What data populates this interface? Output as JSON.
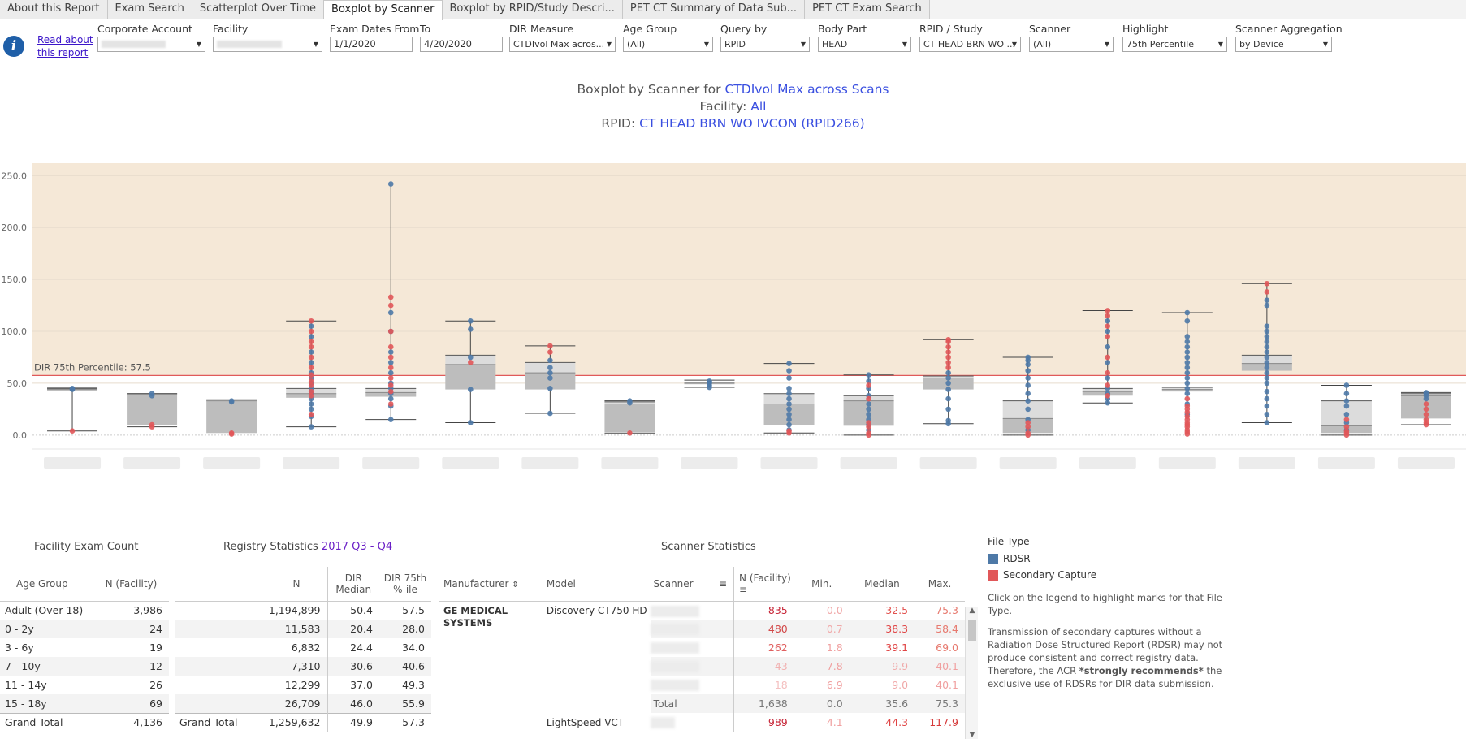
{
  "tabs": [
    {
      "label": "About this Report",
      "active": false
    },
    {
      "label": "Exam Search",
      "active": false
    },
    {
      "label": "Scatterplot Over Time",
      "active": false
    },
    {
      "label": "Boxplot by Scanner",
      "active": true
    },
    {
      "label": "Boxplot by RPID/Study Descri...",
      "active": false
    },
    {
      "label": "PET CT Summary of Data Sub...",
      "active": false
    },
    {
      "label": "PET CT Exam Search",
      "active": false
    }
  ],
  "header": {
    "read_link": "Read about this report",
    "filters": {
      "corporate_account": {
        "label": "Corporate Account",
        "value": ""
      },
      "facility": {
        "label": "Facility",
        "value": ""
      },
      "exam_dates_from": {
        "label": "Exam Dates From",
        "value": "1/1/2020"
      },
      "to": {
        "label": "To",
        "value": "4/20/2020"
      },
      "dir_measure": {
        "label": "DIR Measure",
        "value": "CTDIvol Max acros..."
      },
      "age_group": {
        "label": "Age Group",
        "value": "(All)"
      },
      "query_by": {
        "label": "Query by",
        "value": "RPID"
      },
      "body_part": {
        "label": "Body Part",
        "value": "HEAD"
      },
      "rpid_study": {
        "label": "RPID / Study",
        "value": "CT HEAD BRN WO ..."
      },
      "scanner": {
        "label": "Scanner",
        "value": "(All)"
      },
      "highlight": {
        "label": "Highlight",
        "value": "75th Percentile"
      },
      "scanner_aggregation": {
        "label": "Scanner Aggregation",
        "value": "by Device"
      }
    }
  },
  "title": {
    "line1_prefix": "Boxplot by Scanner for ",
    "line1_value": "CTDIvol Max across Scans",
    "line2_prefix": "Facility: ",
    "line2_value": "All",
    "line3_prefix": "RPID: ",
    "line3_value": "CT HEAD BRN WO IVCON (RPID266)"
  },
  "colors": {
    "rdsr": "#4e79a7",
    "secondary_capture": "#e15759",
    "highlight_band": "#f5e8d7",
    "reference_line": "#e05a5a",
    "link": "#3b15c9"
  },
  "chart_data": {
    "type": "boxplot",
    "y_ticks": [
      "250.0",
      "200.0",
      "150.0",
      "100.0",
      "50.0",
      "0.0"
    ],
    "ylim": [
      -15,
      262
    ],
    "highlight_above": 57.5,
    "reference_line": {
      "value": 57.5,
      "label": "DIR 75th Percentile: 57.5"
    },
    "scanners": [
      {
        "q1": 43,
        "median": 44,
        "q3": 45,
        "min": 4,
        "max": 46,
        "rdsr": [
          44,
          45
        ],
        "sc": [
          4
        ]
      },
      {
        "q1": 10,
        "median": 39,
        "q3": 40,
        "min": 8,
        "max": 40,
        "rdsr": [
          38,
          40
        ],
        "sc": [
          8,
          10
        ]
      },
      {
        "q1": 2,
        "median": 33,
        "q3": 34,
        "min": 1,
        "max": 34,
        "rdsr": [
          32,
          33
        ],
        "sc": [
          1,
          2
        ]
      },
      {
        "q1": 36,
        "median": 40,
        "q3": 45,
        "min": 8,
        "max": 110,
        "rdsr": [
          8,
          18,
          25,
          30,
          35,
          40,
          45,
          50,
          55,
          60,
          70,
          80,
          95,
          105
        ],
        "sc": [
          20,
          38,
          42,
          48,
          52,
          58,
          65,
          75,
          85,
          90,
          100,
          110
        ]
      },
      {
        "q1": 37,
        "median": 41,
        "q3": 45,
        "min": 15,
        "max": 242,
        "rdsr": [
          15,
          28,
          35,
          40,
          45,
          50,
          60,
          70,
          80,
          100,
          118,
          242
        ],
        "sc": [
          30,
          42,
          48,
          55,
          65,
          75,
          85,
          100,
          125,
          133
        ]
      },
      {
        "q1": 44,
        "median": 68,
        "q3": 77,
        "min": 12,
        "max": 110,
        "rdsr": [
          12,
          44,
          75,
          102,
          110
        ],
        "sc": [
          70
        ]
      },
      {
        "q1": 44,
        "median": 60,
        "q3": 70,
        "min": 21,
        "max": 86,
        "rdsr": [
          21,
          45,
          55,
          60,
          65,
          72
        ],
        "sc": [
          80,
          86
        ]
      },
      {
        "q1": 3,
        "median": 30,
        "q3": 32,
        "min": 2,
        "max": 33,
        "rdsr": [
          31,
          33
        ],
        "sc": [
          2
        ]
      },
      {
        "q1": 49,
        "median": 50,
        "q3": 51,
        "min": 46,
        "max": 53,
        "rdsr": [
          46,
          48,
          50,
          51,
          52
        ],
        "sc": []
      },
      {
        "q1": 10,
        "median": 30,
        "q3": 40,
        "min": 2,
        "max": 69,
        "rdsr": [
          5,
          10,
          15,
          20,
          25,
          30,
          35,
          40,
          45,
          55,
          62,
          69
        ],
        "sc": [
          2,
          4
        ]
      },
      {
        "q1": 9,
        "median": 33,
        "q3": 38,
        "min": 0,
        "max": 58,
        "rdsr": [
          5,
          10,
          15,
          20,
          25,
          30,
          38,
          45,
          52,
          58
        ],
        "sc": [
          0,
          2,
          8,
          12,
          35,
          48
        ]
      },
      {
        "q1": 44,
        "median": 55,
        "q3": 57,
        "min": 11,
        "max": 92,
        "rdsr": [
          11,
          14,
          25,
          35,
          44,
          50,
          55,
          60
        ],
        "sc": [
          65,
          70,
          75,
          80,
          85,
          90,
          92
        ]
      },
      {
        "q1": 2,
        "median": 16,
        "q3": 33,
        "min": 0,
        "max": 75,
        "rdsr": [
          5,
          15,
          25,
          33,
          40,
          48,
          55,
          62,
          68,
          72,
          75
        ],
        "sc": [
          0,
          2,
          8,
          12
        ]
      },
      {
        "q1": 38,
        "median": 42,
        "q3": 45,
        "min": 31,
        "max": 120,
        "rdsr": [
          31,
          35,
          40,
          45,
          55,
          70,
          85,
          100,
          110
        ],
        "sc": [
          38,
          48,
          60,
          75,
          95,
          105,
          115,
          120
        ]
      },
      {
        "q1": 42,
        "median": 44,
        "q3": 46,
        "min": 1,
        "max": 118,
        "rdsr": [
          20,
          30,
          40,
          45,
          50,
          55,
          60,
          65,
          70,
          75,
          80,
          85,
          90,
          95,
          110,
          118
        ],
        "sc": [
          1,
          3,
          5,
          8,
          10,
          12,
          15,
          18,
          22,
          25,
          28,
          35
        ]
      },
      {
        "q1": 62,
        "median": 69,
        "q3": 77,
        "min": 12,
        "max": 146,
        "rdsr": [
          12,
          20,
          28,
          35,
          42,
          50,
          55,
          60,
          65,
          70,
          75,
          80,
          85,
          90,
          95,
          100,
          105,
          125,
          130
        ],
        "sc": [
          138,
          146
        ]
      },
      {
        "q1": 2,
        "median": 9,
        "q3": 33,
        "min": 0,
        "max": 48,
        "rdsr": [
          5,
          12,
          20,
          28,
          33,
          40,
          48
        ],
        "sc": [
          0,
          2,
          4,
          8,
          15
        ]
      },
      {
        "q1": 16,
        "median": 38,
        "q3": 40,
        "min": 10,
        "max": 41,
        "rdsr": [
          35,
          38,
          40,
          41
        ],
        "sc": [
          10,
          12,
          15,
          20,
          25,
          30
        ]
      }
    ]
  },
  "facility_exam_count": {
    "title": "Facility Exam Count",
    "headers": [
      "Age Group",
      "N (Facility)"
    ],
    "rows": [
      [
        "Adult (Over 18)",
        "3,986"
      ],
      [
        "0 - 2y",
        "24"
      ],
      [
        "3 - 6y",
        "19"
      ],
      [
        "7 - 10y",
        "12"
      ],
      [
        "11 - 14y",
        "26"
      ],
      [
        "15 - 18y",
        "69"
      ]
    ],
    "grand_total": [
      "Grand Total",
      "4,136"
    ]
  },
  "registry_statistics": {
    "title_prefix": "Registry Statistics ",
    "title_value": "2017 Q3 - Q4",
    "headers": [
      "N",
      "DIR Median",
      "DIR 75th %-ile"
    ],
    "rows": [
      [
        "1,194,899",
        "50.4",
        "57.5"
      ],
      [
        "11,583",
        "20.4",
        "28.0"
      ],
      [
        "6,832",
        "24.4",
        "34.0"
      ],
      [
        "7,310",
        "30.6",
        "40.6"
      ],
      [
        "12,299",
        "37.0",
        "49.3"
      ],
      [
        "26,709",
        "46.0",
        "55.9"
      ]
    ],
    "grand_total": [
      "Grand Total",
      "1,259,632",
      "49.9",
      "57.3"
    ]
  },
  "scanner_statistics": {
    "title": "Scanner Statistics",
    "headers": [
      "Manufacturer",
      "Model",
      "Scanner",
      "N (Facility)",
      "Min.",
      "Median",
      "Max."
    ],
    "manufacturer": "GE MEDICAL SYSTEMS",
    "rows": [
      {
        "model": "Discovery CT750 HD",
        "n": "835",
        "min": "0.0",
        "median": "32.5",
        "max": "75.3"
      },
      {
        "model": "",
        "n": "480",
        "min": "0.7",
        "median": "38.3",
        "max": "58.4"
      },
      {
        "model": "",
        "n": "262",
        "min": "1.8",
        "median": "39.1",
        "max": "69.0"
      },
      {
        "model": "",
        "n": "43",
        "min": "7.8",
        "median": "9.9",
        "max": "40.1"
      },
      {
        "model": "",
        "n": "18",
        "min": "6.9",
        "median": "9.0",
        "max": "40.1"
      }
    ],
    "total": {
      "label": "Total",
      "n": "1,638",
      "min": "0.0",
      "median": "35.6",
      "max": "75.3"
    },
    "next_row": {
      "model": "LightSpeed VCT",
      "n": "989",
      "min": "4.1",
      "median": "44.3",
      "max": "117.9"
    }
  },
  "legend": {
    "title": "File Type",
    "items": [
      {
        "label": "RDSR",
        "color": "#4e79a7"
      },
      {
        "label": "Secondary Capture",
        "color": "#e15759"
      }
    ],
    "note1": "Click on the legend to highlight marks for that File Type.",
    "note2_a": "Transmission of secondary captures without a Radiation Dose Structured Report (RDSR) may not produce consistent and correct registry data. Therefore, the ACR ",
    "note2_b": "*strongly recommends*",
    "note2_c": " the exclusive use of RDSRs for DIR data submission."
  }
}
